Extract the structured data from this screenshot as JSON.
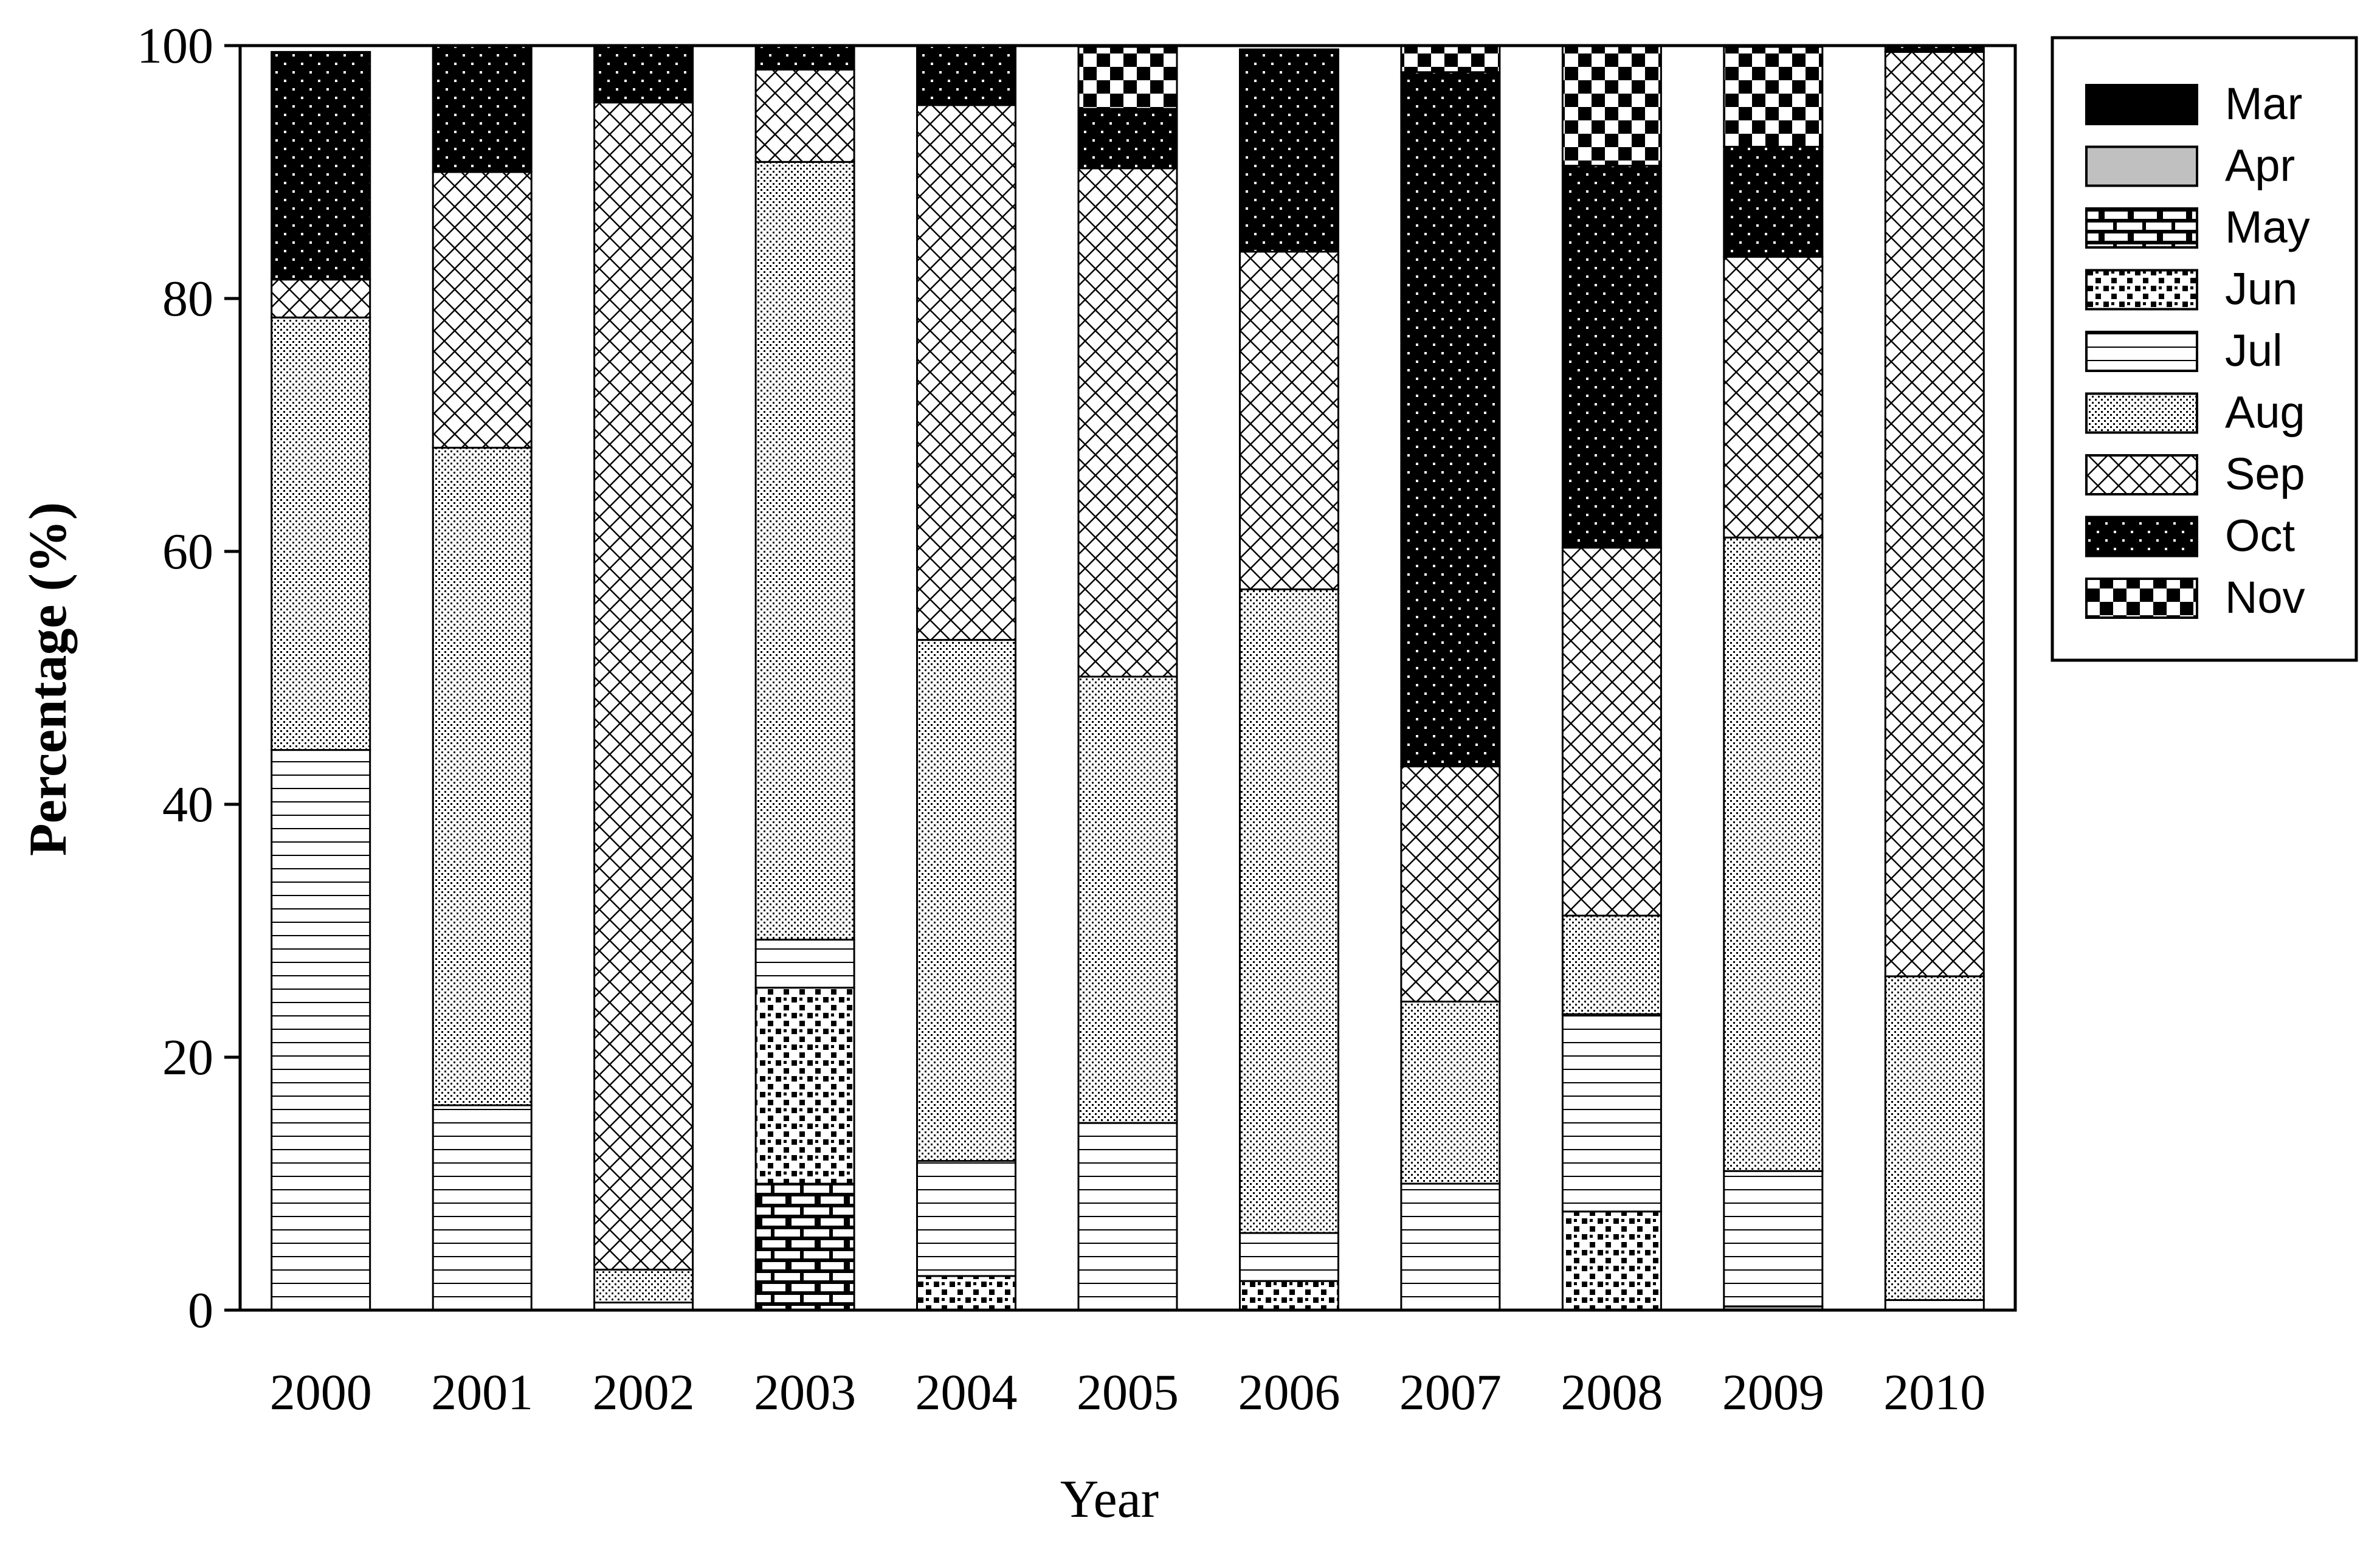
{
  "chart_data": {
    "type": "bar",
    "stacked": true,
    "xlabel": "Year",
    "ylabel": "Percentage (%)",
    "ylim": [
      0,
      100
    ],
    "yticks": [
      0,
      20,
      40,
      60,
      80,
      100
    ],
    "legend_position": "top-right",
    "grid": false,
    "categories": [
      "2000",
      "2001",
      "2002",
      "2003",
      "2004",
      "2005",
      "2006",
      "2007",
      "2008",
      "2009",
      "2010"
    ],
    "series": [
      {
        "name": "Mar",
        "pattern": "solid-black",
        "values": [
          0,
          0,
          0,
          0,
          0,
          0,
          0,
          0,
          0,
          0,
          0
        ]
      },
      {
        "name": "Apr",
        "pattern": "solid-gray",
        "values": [
          0,
          0,
          0,
          0,
          0,
          0,
          0,
          0,
          0,
          0.3,
          0
        ]
      },
      {
        "name": "May",
        "pattern": "bricks",
        "values": [
          0,
          0,
          0,
          10,
          0,
          0,
          0,
          0,
          0,
          0,
          0
        ]
      },
      {
        "name": "Jun",
        "pattern": "coarse-dots",
        "values": [
          0,
          0,
          0,
          15.5,
          2.7,
          0,
          2.3,
          0,
          7.8,
          0,
          0
        ]
      },
      {
        "name": "Jul",
        "pattern": "horizontal-lines",
        "values": [
          44.3,
          16.2,
          0.6,
          3.8,
          9.1,
          14.8,
          3.8,
          10,
          15.6,
          10.7,
          0.8
        ]
      },
      {
        "name": "Aug",
        "pattern": "fine-dots",
        "values": [
          34.2,
          52,
          2.6,
          61.5,
          41.2,
          35.3,
          50.9,
          14.4,
          7.8,
          50.1,
          25.6
        ]
      },
      {
        "name": "Sep",
        "pattern": "cross-hatch",
        "values": [
          3,
          21.8,
          92.3,
          7.3,
          42.3,
          40.2,
          26.7,
          18.6,
          29.1,
          22.2,
          73.1
        ]
      },
      {
        "name": "Oct",
        "pattern": "dots-on-black",
        "values": [
          18,
          10,
          4.5,
          1.9,
          4.7,
          4.7,
          16,
          54.9,
          30.2,
          8.7,
          0.5
        ]
      },
      {
        "name": "Nov",
        "pattern": "checker",
        "values": [
          0,
          0,
          0,
          0,
          0,
          4.9,
          0,
          2.1,
          9.5,
          7.9,
          0
        ]
      }
    ]
  }
}
